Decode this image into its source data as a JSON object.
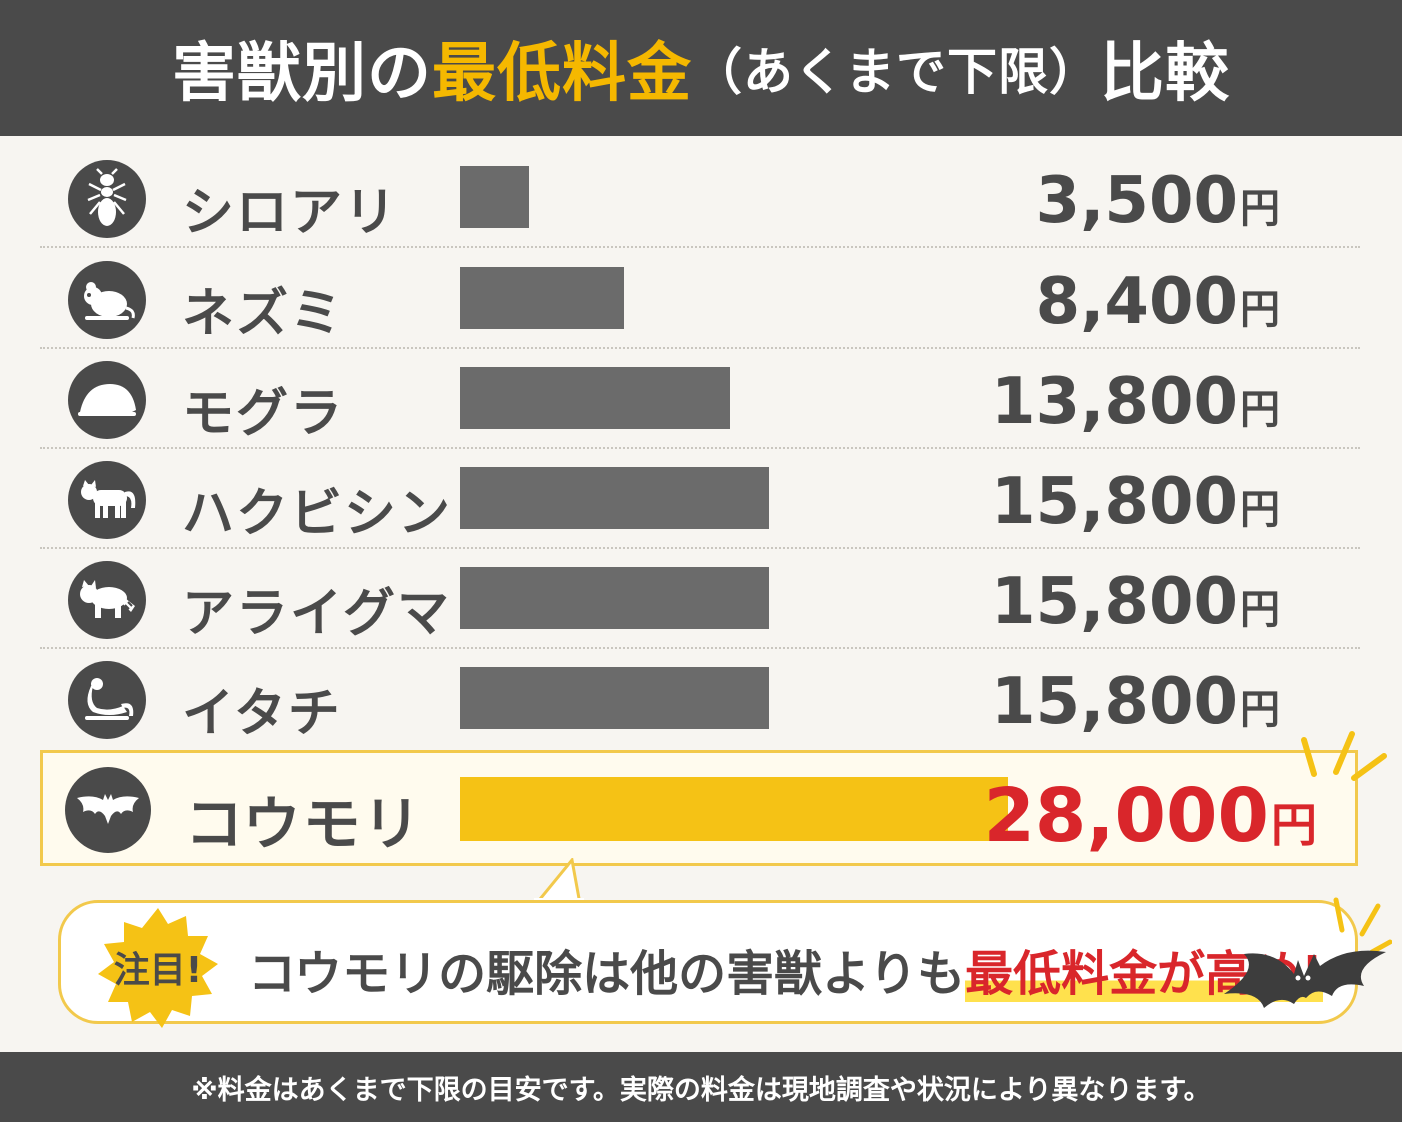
{
  "header": {
    "title_pre": "害獣別の",
    "title_highlight": "最低料金",
    "title_note": "（あくまで下限）",
    "title_post": "比較"
  },
  "chart_data": {
    "type": "bar",
    "orientation": "horizontal",
    "unit": "円",
    "categories": [
      "シロアリ",
      "ネズミ",
      "モグラ",
      "ハクビシン",
      "アライグマ",
      "イタチ",
      "コウモリ"
    ],
    "values": [
      3500,
      8400,
      13800,
      15800,
      15800,
      15800,
      28000
    ],
    "value_labels": [
      "3,500",
      "8,400",
      "13,800",
      "15,800",
      "15,800",
      "15,800",
      "28,000"
    ],
    "icons": [
      "termite-icon",
      "rat-icon",
      "mole-icon",
      "civet-icon",
      "raccoon-icon",
      "weasel-icon",
      "bat-icon"
    ],
    "highlight_index": 6,
    "colors": {
      "bar": "#6b6b6b",
      "highlight_bar": "#f5c215",
      "highlight_value": "#d9262b"
    }
  },
  "callout": {
    "badge": "注目!",
    "text_pre": "コウモリの駆除は他の害獣よりも",
    "text_em": "最低料金が高め!"
  },
  "footer": {
    "note": "※料金はあくまで下限の目安です。実際の料金は現地調査や状況により異なります。"
  }
}
